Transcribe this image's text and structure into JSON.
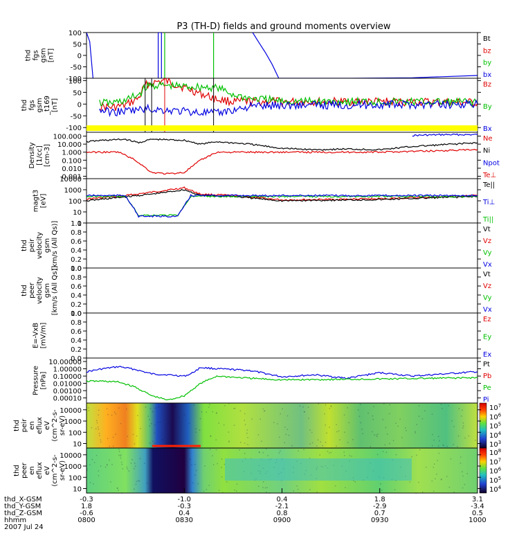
{
  "chart_data": {
    "type": "line",
    "title": "P3 (TH-D) fields and ground moments overview",
    "panels": [
      {
        "id": "fgs",
        "ylabel": [
          "thd",
          "fgs",
          "gsm",
          "[nT]"
        ],
        "yticks": [
          "100",
          "50",
          "0",
          "-50",
          "-100"
        ],
        "ylim": [
          -100,
          100
        ],
        "scale": "linear",
        "legend": [
          {
            "label": "Bt",
            "color": "#000000"
          },
          {
            "label": "bz",
            "color": "#e00000"
          },
          {
            "label": "by",
            "color": "#00c000"
          },
          {
            "label": "bx",
            "color": "#0000e0"
          }
        ],
        "series": [
          {
            "color": "#0000e0",
            "x": [
              "08:00",
              "08:01",
              "08:02"
            ],
            "values": [
              100,
              60,
              -100
            ]
          },
          {
            "color": "#0000e0",
            "x": [
              "08:22",
              "08:22",
              "08:23",
              "08:23"
            ],
            "values": [
              -100,
              100,
              100,
              -100
            ]
          },
          {
            "color": "#00c000",
            "x": [
              "08:24",
              "08:24"
            ],
            "values": [
              -100,
              100
            ]
          },
          {
            "color": "#00c000",
            "x": [
              "08:39",
              "08:39"
            ],
            "values": [
              100,
              -100
            ]
          },
          {
            "color": "#0000e0",
            "x": [
              "08:51",
              "08:53",
              "08:55",
              "08:57",
              "08:59"
            ],
            "values": [
              100,
              55,
              10,
              -40,
              -100
            ]
          },
          {
            "color": "#0000e0",
            "x": [
              "08:59",
              "09:20",
              "09:40",
              "10:00"
            ],
            "values": [
              -100,
              -100,
              -98,
              -88
            ]
          }
        ]
      },
      {
        "id": "fgs_t169",
        "ylabel": [
          "thd",
          "fgs",
          "gsm",
          "_t169",
          "[nT]"
        ],
        "yticks": [
          "100",
          "50",
          "0",
          "-50",
          "-100"
        ],
        "ylim": [
          -120,
          110
        ],
        "scale": "linear",
        "legend": [
          {
            "label": "Bz",
            "color": "#e00000"
          },
          {
            "label": "By",
            "color": "#00c000"
          },
          {
            "label": "Bx",
            "color": "#0000e0"
          }
        ],
        "series": [
          {
            "color": "#e00000",
            "x": [
              "08:04",
              "08:08",
              "08:12",
              "08:16",
              "08:18",
              "08:20",
              "08:24",
              "08:26",
              "08:40",
              "08:45",
              "08:50",
              "09:00",
              "09:30",
              "10:00"
            ],
            "values": [
              -10,
              -15,
              -5,
              25,
              80,
              90,
              100,
              90,
              20,
              10,
              10,
              10,
              10,
              6
            ]
          },
          {
            "color": "#00c000",
            "x": [
              "08:04",
              "08:08",
              "08:12",
              "08:16",
              "08:18",
              "08:20",
              "08:40",
              "08:45",
              "08:50",
              "09:00",
              "09:30",
              "10:00"
            ],
            "values": [
              5,
              5,
              15,
              40,
              70,
              80,
              70,
              40,
              25,
              12,
              10,
              8
            ]
          },
          {
            "color": "#0000e0",
            "x": [
              "08:04",
              "08:08",
              "08:12",
              "08:16",
              "08:18",
              "08:40",
              "08:45",
              "08:50",
              "09:00",
              "09:30",
              "10:00"
            ],
            "values": [
              -25,
              -35,
              -30,
              -25,
              -20,
              -40,
              -25,
              -10,
              -5,
              -3,
              0
            ]
          }
        ]
      },
      {
        "id": "density",
        "ylabel": [
          "Density",
          "[1/cc]",
          "[cm-3]"
        ],
        "yticks": [
          "100.000",
          "10.000",
          "1.000",
          "0.100",
          "0.010",
          "0.001"
        ],
        "ylim": [
          0.0005,
          300
        ],
        "scale": "log",
        "legend": [
          {
            "label": "Ne",
            "color": "#e00000"
          },
          {
            "label": "Ni",
            "color": "#000000"
          },
          {
            "label": "Npot",
            "color": "#0000e0"
          },
          {
            "label": "Te⊥",
            "color": "#e00000"
          }
        ],
        "series": [
          {
            "color": "#0000e0",
            "x": [
              "09:40",
              "09:50",
              "10:00"
            ],
            "values": [
              120,
              150,
              150
            ]
          },
          {
            "color": "#000000",
            "x": [
              "08:00",
              "08:05",
              "08:12",
              "08:16",
              "08:20",
              "08:30",
              "08:35",
              "08:40",
              "08:50",
              "09:00",
              "09:10",
              "09:20",
              "09:30",
              "09:40",
              "10:00"
            ],
            "values": [
              20,
              30,
              40,
              15,
              40,
              30,
              10,
              20,
              10,
              3,
              2,
              2.5,
              2,
              5,
              15
            ]
          },
          {
            "color": "#e00000",
            "x": [
              "08:00",
              "08:05",
              "08:10",
              "08:15",
              "08:20",
              "08:25",
              "08:30",
              "08:35",
              "08:40",
              "08:50",
              "09:00",
              "09:30",
              "10:00"
            ],
            "values": [
              1,
              1,
              1,
              0.1,
              0.003,
              0.002,
              0.003,
              0.1,
              1,
              1,
              1,
              1,
              2
            ]
          }
        ]
      },
      {
        "id": "magt3",
        "ylabel": [
          "magt3",
          "[eV]"
        ],
        "yticks": [
          "10000",
          "1000",
          "100",
          "10",
          "1"
        ],
        "ylim": [
          1,
          10000
        ],
        "scale": "log",
        "legend": [
          {
            "label": "Te||",
            "color": "#000000"
          },
          {
            "label": "Ti⊥",
            "color": "#0000e0"
          },
          {
            "label": "Ti||",
            "color": "#00c000"
          }
        ],
        "series": [
          {
            "color": "#e00000",
            "x": [
              "08:00",
              "08:10",
              "08:20",
              "08:30",
              "08:35",
              "08:45",
              "09:00",
              "09:30",
              "10:00"
            ],
            "values": [
              150,
              250,
              600,
              1500,
              400,
              300,
              120,
              150,
              300
            ]
          },
          {
            "color": "#000000",
            "x": [
              "08:00",
              "08:10",
              "08:20",
              "08:30",
              "08:35",
              "08:45",
              "09:00",
              "09:30",
              "10:00"
            ],
            "values": [
              100,
              200,
              400,
              1000,
              300,
              250,
              100,
              130,
              250
            ]
          },
          {
            "color": "#00c000",
            "x": [
              "08:00",
              "08:12",
              "08:16",
              "08:28",
              "08:32",
              "09:00",
              "10:00"
            ],
            "values": [
              250,
              250,
              5,
              5,
              250,
              250,
              250
            ]
          },
          {
            "color": "#0000e0",
            "x": [
              "08:00",
              "08:12",
              "08:16",
              "08:28",
              "08:32",
              "09:00",
              "10:00"
            ],
            "values": [
              300,
              300,
              4,
              4,
              300,
              300,
              300
            ]
          }
        ]
      },
      {
        "id": "peir_velocity",
        "ylabel": [
          "thd",
          "peir",
          "velocity",
          "gsm",
          "[km/s (All Qs)]"
        ],
        "yticks": [
          "1.0",
          "0.8",
          "0.6",
          "0.4",
          "0.2",
          "0.0"
        ],
        "ylim": [
          0,
          1
        ],
        "scale": "linear",
        "legend": [
          {
            "label": "Vt",
            "color": "#000000"
          },
          {
            "label": "Vz",
            "color": "#e00000"
          },
          {
            "label": "Vy",
            "color": "#00c000"
          },
          {
            "label": "Vx",
            "color": "#0000e0"
          }
        ],
        "series": []
      },
      {
        "id": "peer_velocity",
        "ylabel": [
          "thd",
          "peer",
          "velocity",
          "gsm",
          "[km/s (All Qs)]"
        ],
        "yticks": [
          "1.0",
          "0.8",
          "0.6",
          "0.4",
          "0.2",
          "0.0"
        ],
        "ylim": [
          0,
          1
        ],
        "scale": "linear",
        "legend": [
          {
            "label": "Vt",
            "color": "#000000"
          },
          {
            "label": "Vz",
            "color": "#e00000"
          },
          {
            "label": "Vy",
            "color": "#00c000"
          },
          {
            "label": "Vx",
            "color": "#0000e0"
          }
        ],
        "series": []
      },
      {
        "id": "efield",
        "ylabel": [
          "E=-VxB",
          "[mV/m]"
        ],
        "yticks": [
          "1.0",
          "0.8",
          "0.6",
          "0.4",
          "0.2",
          "0.0"
        ],
        "ylim": [
          0,
          1
        ],
        "scale": "linear",
        "legend": [
          {
            "label": "Ez",
            "color": "#e00000"
          },
          {
            "label": "Ey",
            "color": "#00c000"
          },
          {
            "label": "Ex",
            "color": "#0000e0"
          }
        ],
        "series": []
      },
      {
        "id": "pressure",
        "ylabel": [
          "Pressure",
          "[nPa]"
        ],
        "yticks": [
          "10.00000",
          "1.00000",
          "0.10000",
          "0.01000",
          "0.00100",
          "0.00010"
        ],
        "ylim": [
          2e-05,
          30
        ],
        "scale": "log",
        "legend": [
          {
            "label": "Pt",
            "color": "#000000"
          },
          {
            "label": "Pb",
            "color": "#e00000"
          },
          {
            "label": "Pe",
            "color": "#00c000"
          },
          {
            "label": "Pi",
            "color": "#0000e0"
          }
        ],
        "series": [
          {
            "color": "#0000e0",
            "x": [
              "08:00",
              "08:05",
              "08:10",
              "08:15",
              "08:20",
              "08:25",
              "08:30",
              "08:32",
              "08:35",
              "08:40",
              "08:50",
              "09:00",
              "09:10",
              "09:20",
              "09:30",
              "09:40",
              "10:00"
            ],
            "values": [
              0.4,
              1,
              2,
              0.8,
              0.2,
              0.15,
              0.1,
              0.2,
              1.5,
              1,
              0.6,
              0.08,
              0.15,
              0.05,
              0.3,
              0.1,
              0.4
            ]
          },
          {
            "color": "#00c000",
            "x": [
              "08:00",
              "08:05",
              "08:10",
              "08:15",
              "08:20",
              "08:25",
              "08:30",
              "08:35",
              "08:40",
              "08:50",
              "09:00",
              "09:30",
              "10:00"
            ],
            "values": [
              0.02,
              0.02,
              0.015,
              0.003,
              0.0002,
              5e-05,
              0.0002,
              0.01,
              0.1,
              0.05,
              0.03,
              0.04,
              0.06
            ]
          }
        ]
      },
      {
        "id": "peir_spec",
        "type": "heatmap",
        "ylabel": [
          "thd",
          "peir",
          "en",
          "eflux",
          "eV",
          "(cm^2-s-",
          "sr-eV)"
        ],
        "yticks": [
          "10000",
          "1000",
          "100",
          "10"
        ],
        "colorbar_ticks": [
          "10^7",
          "10^6",
          "10^5",
          "10^4",
          "10^3"
        ]
      },
      {
        "id": "peer_spec",
        "type": "heatmap",
        "ylabel": [
          "thd",
          "peer",
          "en",
          "eflux",
          "eV",
          "(cm^2-s-",
          "sr-eV)"
        ],
        "yticks": [
          "10000",
          "1000",
          "100",
          "10"
        ],
        "colorbar_ticks": [
          "10^8",
          "10^7",
          "10^6",
          "10^5",
          "10^4"
        ]
      }
    ],
    "x_axis": {
      "rows": [
        {
          "label": "thd_X-GSM",
          "values": [
            "-0.3",
            "-1.0",
            "0.4",
            "1.8",
            "3.1"
          ]
        },
        {
          "label": "thd_Y-GSM",
          "values": [
            "1.8",
            "-0.3",
            "-2.1",
            "-2.9",
            "-3.4"
          ]
        },
        {
          "label": "thd_Z-GSM",
          "values": [
            "-0.6",
            "0.4",
            "0.8",
            "0.7",
            "0.5"
          ]
        },
        {
          "label": "hhmm",
          "values": [
            "0800",
            "0830",
            "0900",
            "0930",
            "1000"
          ]
        }
      ],
      "date": "2007 Jul 24"
    }
  }
}
